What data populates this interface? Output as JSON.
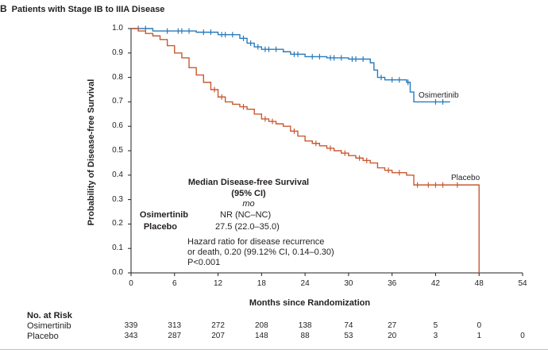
{
  "panel": {
    "letter": "B",
    "title": "Patients with Stage IB to IIIA Disease"
  },
  "chart_data": {
    "type": "line",
    "title": "Patients with Stage IB to IIIA Disease",
    "xlabel": "Months since Randomization",
    "ylabel": "Probability of Disease-free Survival",
    "xlim": [
      0,
      54
    ],
    "ylim": [
      0,
      1
    ],
    "x_ticks": [
      "0",
      "6",
      "12",
      "18",
      "24",
      "30",
      "36",
      "42",
      "48",
      "54"
    ],
    "y_ticks": [
      "0.0",
      "0.1",
      "0.2",
      "0.3",
      "0.4",
      "0.5",
      "0.6",
      "0.7",
      "0.8",
      "0.9",
      "1.0"
    ],
    "grid": false,
    "series": [
      {
        "name": "Osimertinib",
        "color": "#2b7bba",
        "steps": [
          [
            0,
            1.0
          ],
          [
            3,
            0.99
          ],
          [
            6,
            0.99
          ],
          [
            9,
            0.985
          ],
          [
            12,
            0.975
          ],
          [
            15,
            0.96
          ],
          [
            16,
            0.94
          ],
          [
            17,
            0.925
          ],
          [
            18,
            0.915
          ],
          [
            21,
            0.905
          ],
          [
            22,
            0.895
          ],
          [
            24,
            0.885
          ],
          [
            27,
            0.88
          ],
          [
            30,
            0.875
          ],
          [
            33,
            0.86
          ],
          [
            33.5,
            0.83
          ],
          [
            34,
            0.8
          ],
          [
            35,
            0.79
          ],
          [
            38,
            0.78
          ],
          [
            38.5,
            0.74
          ],
          [
            39,
            0.7
          ],
          [
            44,
            0.7
          ]
        ],
        "censor": [
          [
            1,
            1.0
          ],
          [
            2,
            1.0
          ],
          [
            5,
            0.99
          ],
          [
            6.5,
            0.99
          ],
          [
            7,
            0.99
          ],
          [
            8,
            0.99
          ],
          [
            10,
            0.985
          ],
          [
            11,
            0.985
          ],
          [
            12.5,
            0.975
          ],
          [
            13,
            0.975
          ],
          [
            14,
            0.975
          ],
          [
            15.5,
            0.96
          ],
          [
            16.5,
            0.94
          ],
          [
            17.5,
            0.925
          ],
          [
            18.5,
            0.915
          ],
          [
            19,
            0.915
          ],
          [
            20,
            0.915
          ],
          [
            22.5,
            0.895
          ],
          [
            23,
            0.895
          ],
          [
            25,
            0.885
          ],
          [
            26,
            0.885
          ],
          [
            27.5,
            0.88
          ],
          [
            28,
            0.88
          ],
          [
            29,
            0.88
          ],
          [
            30.5,
            0.875
          ],
          [
            31,
            0.875
          ],
          [
            32,
            0.875
          ],
          [
            34.5,
            0.8
          ],
          [
            36,
            0.79
          ],
          [
            37,
            0.79
          ],
          [
            38.2,
            0.78
          ],
          [
            42,
            0.7
          ],
          [
            43,
            0.7
          ]
        ]
      },
      {
        "name": "Placebo",
        "color": "#c85a31",
        "steps": [
          [
            0,
            1.0
          ],
          [
            1,
            0.99
          ],
          [
            2,
            0.98
          ],
          [
            3,
            0.97
          ],
          [
            4,
            0.955
          ],
          [
            5,
            0.93
          ],
          [
            6,
            0.9
          ],
          [
            7,
            0.88
          ],
          [
            8,
            0.84
          ],
          [
            9,
            0.81
          ],
          [
            10,
            0.78
          ],
          [
            11,
            0.75
          ],
          [
            12,
            0.72
          ],
          [
            13,
            0.7
          ],
          [
            14,
            0.69
          ],
          [
            15,
            0.68
          ],
          [
            16,
            0.67
          ],
          [
            17,
            0.65
          ],
          [
            18,
            0.63
          ],
          [
            19,
            0.62
          ],
          [
            20,
            0.61
          ],
          [
            21,
            0.6
          ],
          [
            22,
            0.58
          ],
          [
            23,
            0.56
          ],
          [
            24,
            0.54
          ],
          [
            25,
            0.53
          ],
          [
            26,
            0.52
          ],
          [
            27,
            0.51
          ],
          [
            28,
            0.5
          ],
          [
            29,
            0.49
          ],
          [
            30,
            0.48
          ],
          [
            31,
            0.47
          ],
          [
            32,
            0.46
          ],
          [
            33,
            0.45
          ],
          [
            34,
            0.43
          ],
          [
            35,
            0.42
          ],
          [
            36,
            0.41
          ],
          [
            38,
            0.4
          ],
          [
            39,
            0.36
          ],
          [
            48,
            0.36
          ],
          [
            48,
            0.0
          ]
        ],
        "censor": [
          [
            11.5,
            0.75
          ],
          [
            12.5,
            0.72
          ],
          [
            15.5,
            0.68
          ],
          [
            18.5,
            0.63
          ],
          [
            19.5,
            0.62
          ],
          [
            22.5,
            0.58
          ],
          [
            25.5,
            0.53
          ],
          [
            27.5,
            0.51
          ],
          [
            29.5,
            0.49
          ],
          [
            31.5,
            0.47
          ],
          [
            32.5,
            0.46
          ],
          [
            35.5,
            0.42
          ],
          [
            37,
            0.41
          ],
          [
            39.5,
            0.36
          ],
          [
            41,
            0.36
          ],
          [
            42,
            0.36
          ],
          [
            43,
            0.36
          ],
          [
            45,
            0.36
          ]
        ]
      }
    ],
    "annotations": {
      "median_title_line1": "Median Disease-free Survival",
      "median_title_line2": "(95% CI)",
      "median_unit": "mo",
      "rows": [
        {
          "name": "Osimertinib",
          "value": "NR (NC–NC)"
        },
        {
          "name": "Placebo",
          "value": "27.5 (22.0–35.0)"
        }
      ],
      "hazard_lines": [
        "Hazard ratio for disease recurrence",
        "or death, 0.20 (99.12% CI, 0.14–0.30)",
        "P<0.001"
      ]
    }
  },
  "risk_table": {
    "header": "No. at Risk",
    "rows": [
      {
        "name": "Osimertinib",
        "values": [
          "339",
          "313",
          "272",
          "208",
          "138",
          "74",
          "27",
          "5",
          "0"
        ]
      },
      {
        "name": "Placebo",
        "values": [
          "343",
          "287",
          "207",
          "148",
          "88",
          "53",
          "20",
          "3",
          "1",
          "0"
        ]
      }
    ]
  }
}
